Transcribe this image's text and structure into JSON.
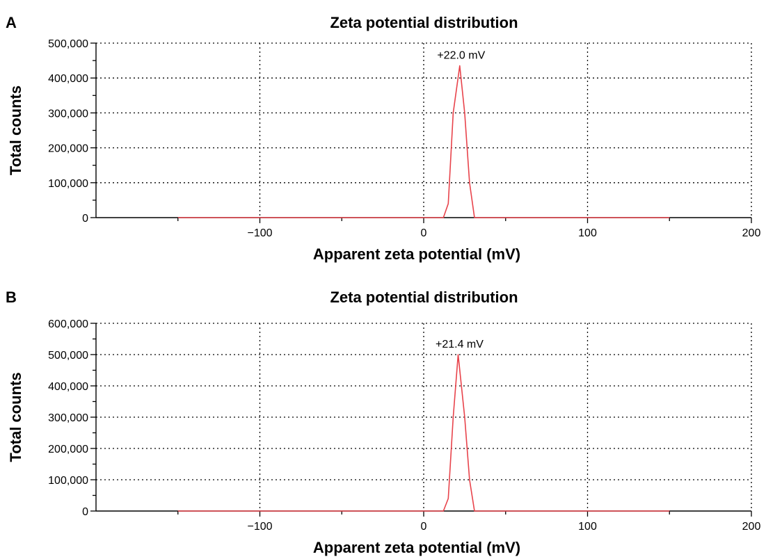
{
  "panels": [
    {
      "letter": "A",
      "chart_data": {
        "type": "line",
        "title": "Zeta potential distribution",
        "xlabel": "Apparent zeta potential (mV)",
        "ylabel": "Total counts",
        "xlim": [
          -200,
          200
        ],
        "ylim": [
          0,
          500000
        ],
        "xticks": [
          -100,
          0,
          100,
          200
        ],
        "xtick_labels": [
          "−100",
          "0",
          "100",
          "200"
        ],
        "yticks": [
          0,
          100000,
          200000,
          300000,
          400000,
          500000
        ],
        "ytick_labels": [
          "0",
          "100,000",
          "200,000",
          "300,000",
          "400,000",
          "500,000"
        ],
        "grid": true,
        "line_color": "#e8434b",
        "series": [
          {
            "x": [
              -150,
              12,
              15,
              18,
              22,
              25,
              28,
              31,
              150
            ],
            "y": [
              0,
              0,
              40000,
              300000,
              435000,
              300000,
              100000,
              0,
              0
            ]
          }
        ],
        "annotations": [
          {
            "text": "+22.0 mV",
            "x": 22,
            "y": 435000
          }
        ]
      }
    },
    {
      "letter": "B",
      "chart_data": {
        "type": "line",
        "title": "Zeta potential distribution",
        "xlabel": "Apparent zeta potential (mV)",
        "ylabel": "Total counts",
        "xlim": [
          -200,
          200
        ],
        "ylim": [
          0,
          600000
        ],
        "xticks": [
          -100,
          0,
          100,
          200
        ],
        "xtick_labels": [
          "−100",
          "0",
          "100",
          "200"
        ],
        "yticks": [
          0,
          100000,
          200000,
          300000,
          400000,
          500000,
          600000
        ],
        "ytick_labels": [
          "0",
          "100,000",
          "200,000",
          "300,000",
          "400,000",
          "500,000",
          "600,000"
        ],
        "grid": true,
        "line_color": "#e8434b",
        "series": [
          {
            "x": [
              -150,
              12,
              15,
              18,
              21,
              25,
              28,
              31,
              150
            ],
            "y": [
              0,
              0,
              40000,
              300000,
              500000,
              300000,
              100000,
              0,
              0
            ]
          }
        ],
        "annotations": [
          {
            "text": "+21.4 mV",
            "x": 21,
            "y": 500000
          }
        ]
      }
    }
  ]
}
